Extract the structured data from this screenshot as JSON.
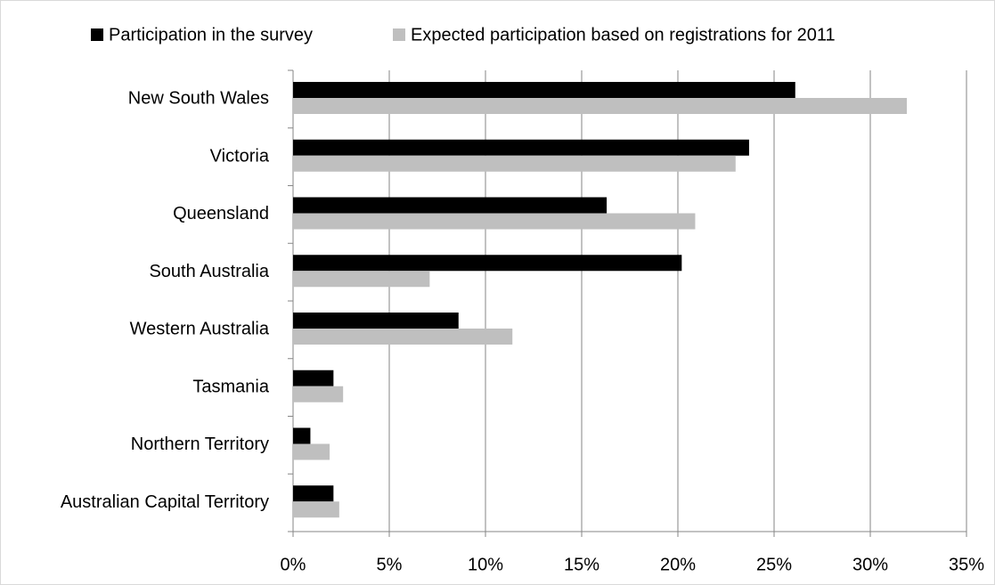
{
  "chart_data": {
    "type": "barh",
    "categories": [
      "New South Wales",
      "Victoria",
      "Queensland",
      "South Australia",
      "Western Australia",
      "Tasmania",
      "Northern Territory",
      "Australian Capital Territory"
    ],
    "series": [
      {
        "name": "Participation in the survey",
        "color": "#000000",
        "values": [
          26.1,
          23.7,
          16.3,
          20.2,
          8.6,
          2.1,
          0.9,
          2.1
        ]
      },
      {
        "name": "Expected participation based on registrations for 2011",
        "color": "#bfbfbf",
        "values": [
          31.9,
          23.0,
          20.9,
          7.1,
          11.4,
          2.6,
          1.9,
          2.4
        ]
      }
    ],
    "xlim": [
      0,
      35
    ],
    "xticks": [
      {
        "value": 0,
        "label": "0%"
      },
      {
        "value": 5,
        "label": "5%"
      },
      {
        "value": 10,
        "label": "10%"
      },
      {
        "value": 15,
        "label": "15%"
      },
      {
        "value": 20,
        "label": "20%"
      },
      {
        "value": 25,
        "label": "25%"
      },
      {
        "value": 30,
        "label": "30%"
      },
      {
        "value": 35,
        "label": "35%"
      }
    ],
    "grid": true,
    "legend": "top"
  }
}
